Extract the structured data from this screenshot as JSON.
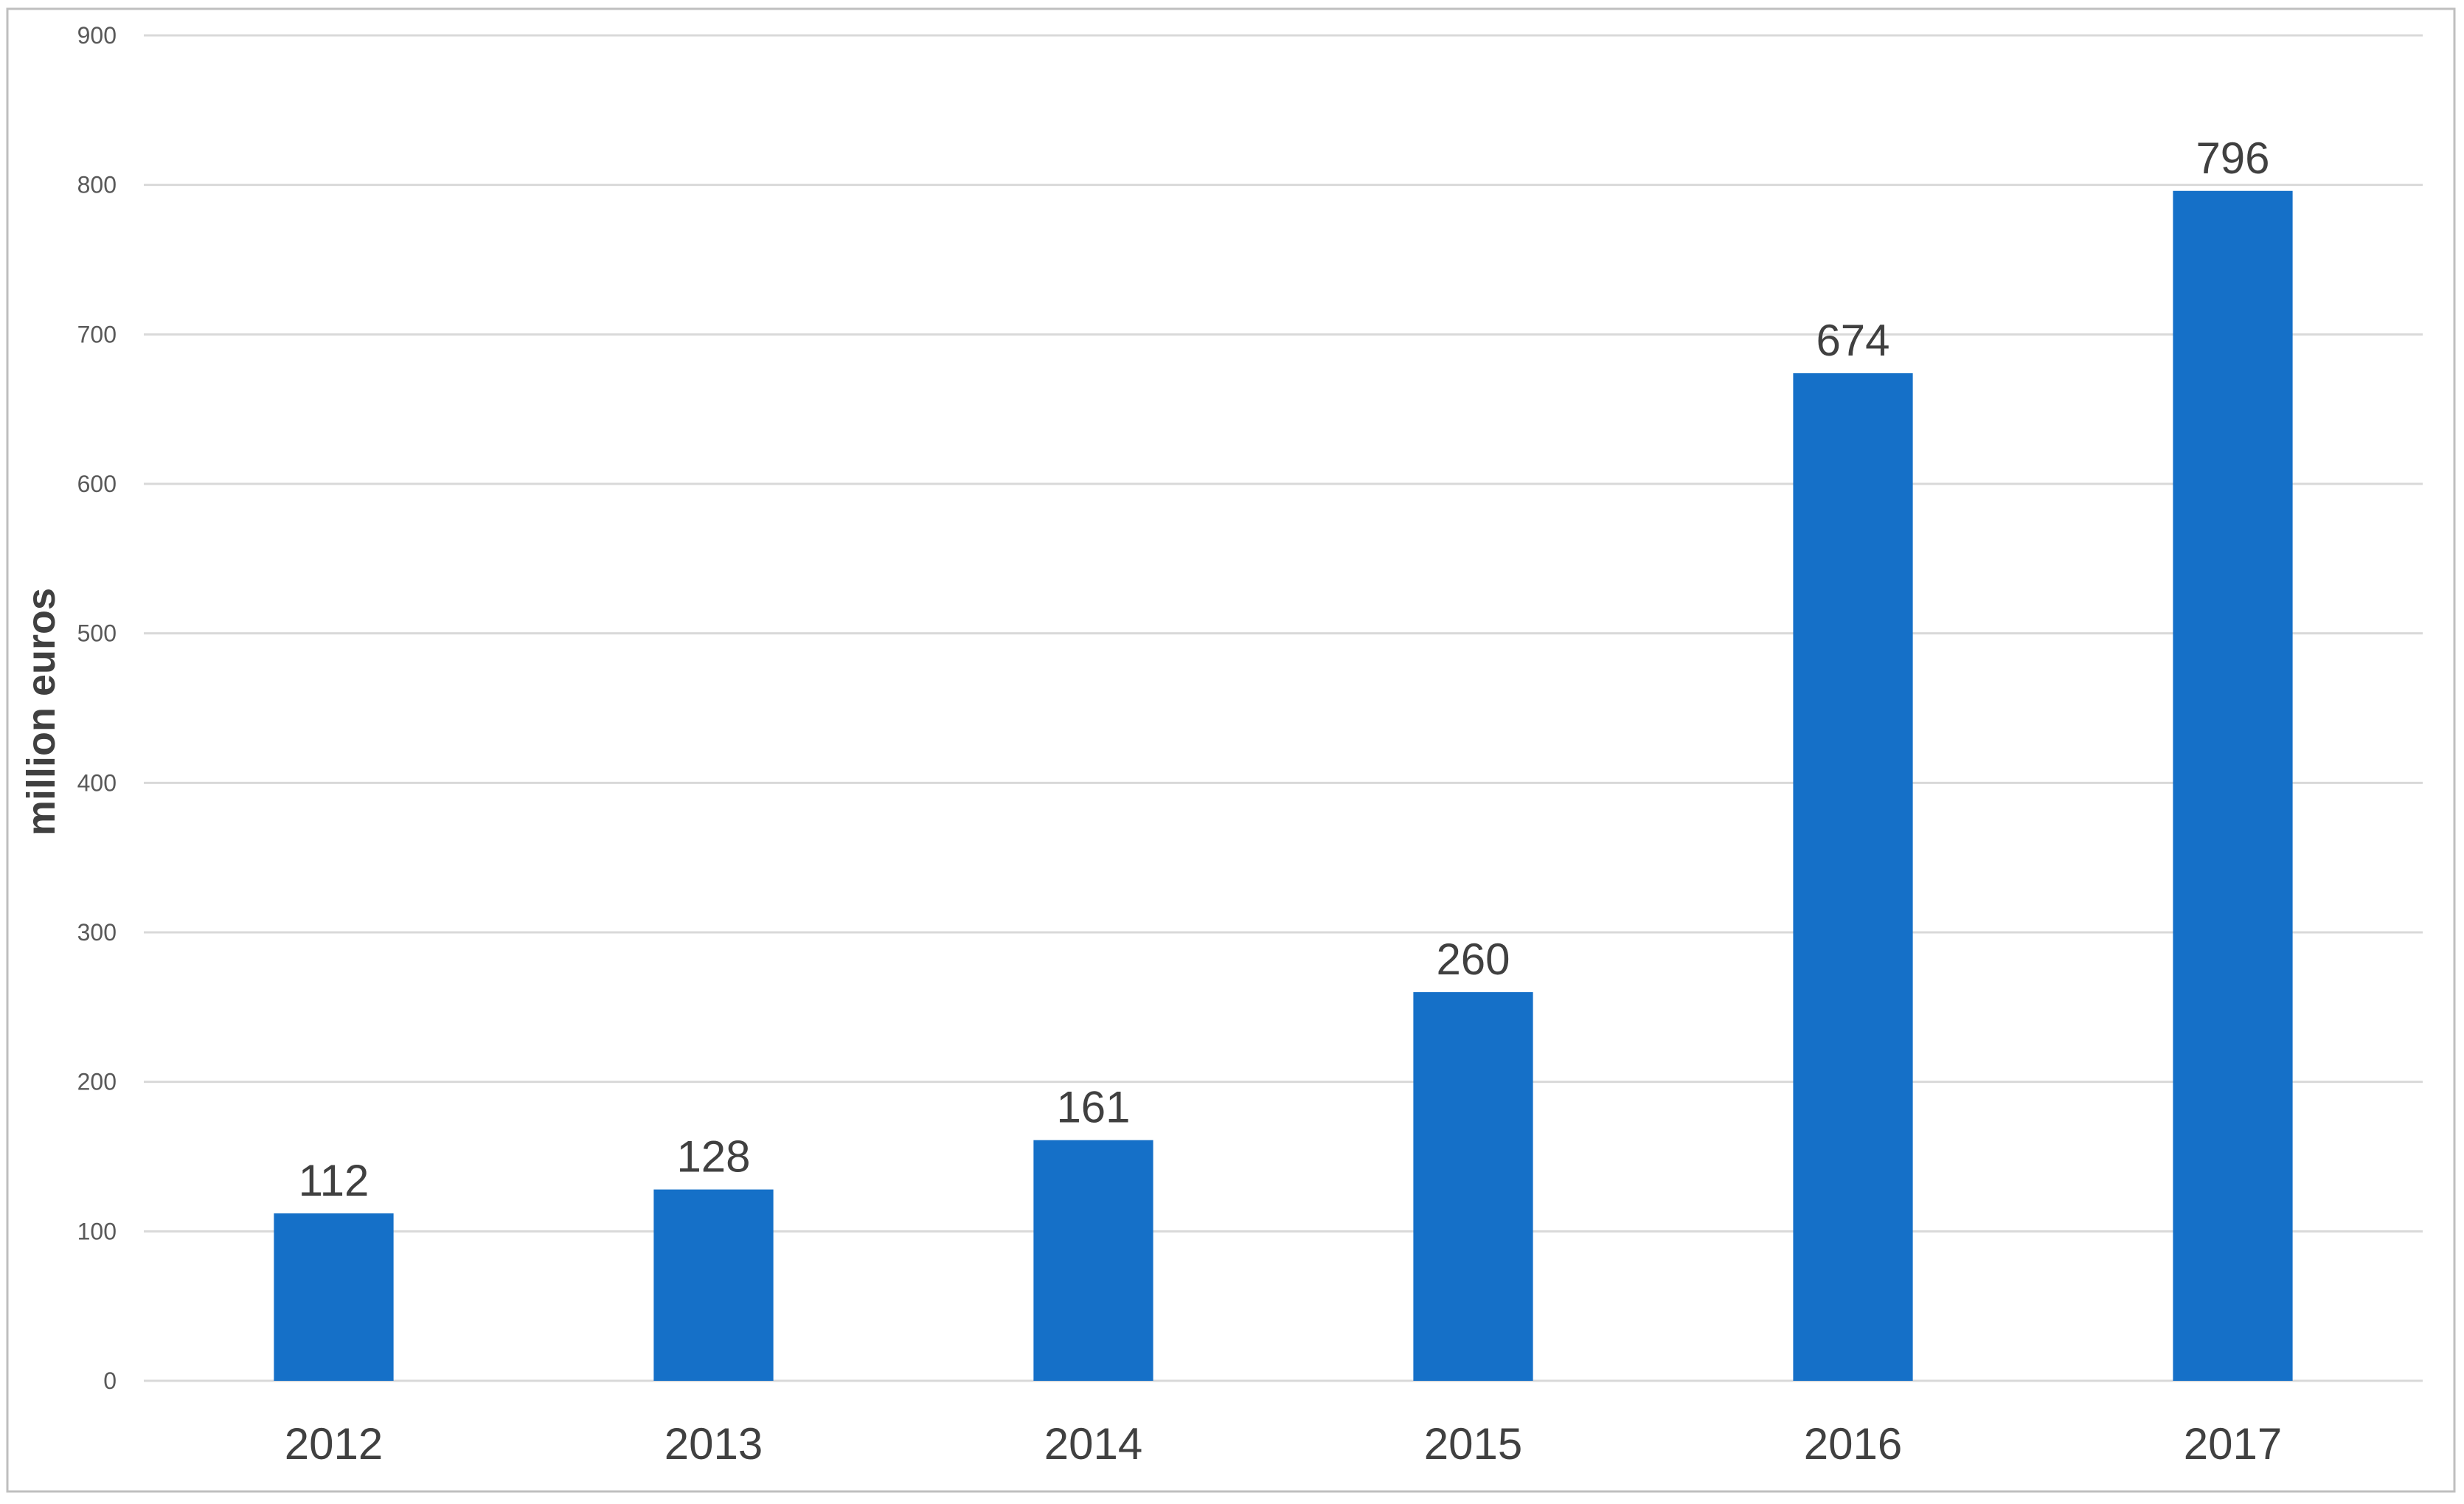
{
  "chart_data": {
    "type": "bar",
    "categories": [
      "2012",
      "2013",
      "2014",
      "2015",
      "2016",
      "2017"
    ],
    "values": [
      112,
      128,
      161,
      260,
      674,
      796
    ],
    "data_labels": [
      "112",
      "128",
      "161",
      "260",
      "674",
      "796"
    ],
    "ylabel": "million euros",
    "xlabel": "",
    "title": "",
    "ylim": [
      0,
      900
    ],
    "yticks": [
      0,
      100,
      200,
      300,
      400,
      500,
      600,
      700,
      800,
      900
    ],
    "ytick_labels": [
      "0",
      "100",
      "200",
      "300",
      "400",
      "500",
      "600",
      "700",
      "800",
      "900"
    ],
    "grid": true,
    "legend": "none"
  },
  "colors": {
    "bar": "#1570C8",
    "grid": "#D9D9D9",
    "tick_text": "#595959",
    "label_text": "#404040",
    "axis_title": "#404040",
    "frame": "#BFBFBF"
  }
}
